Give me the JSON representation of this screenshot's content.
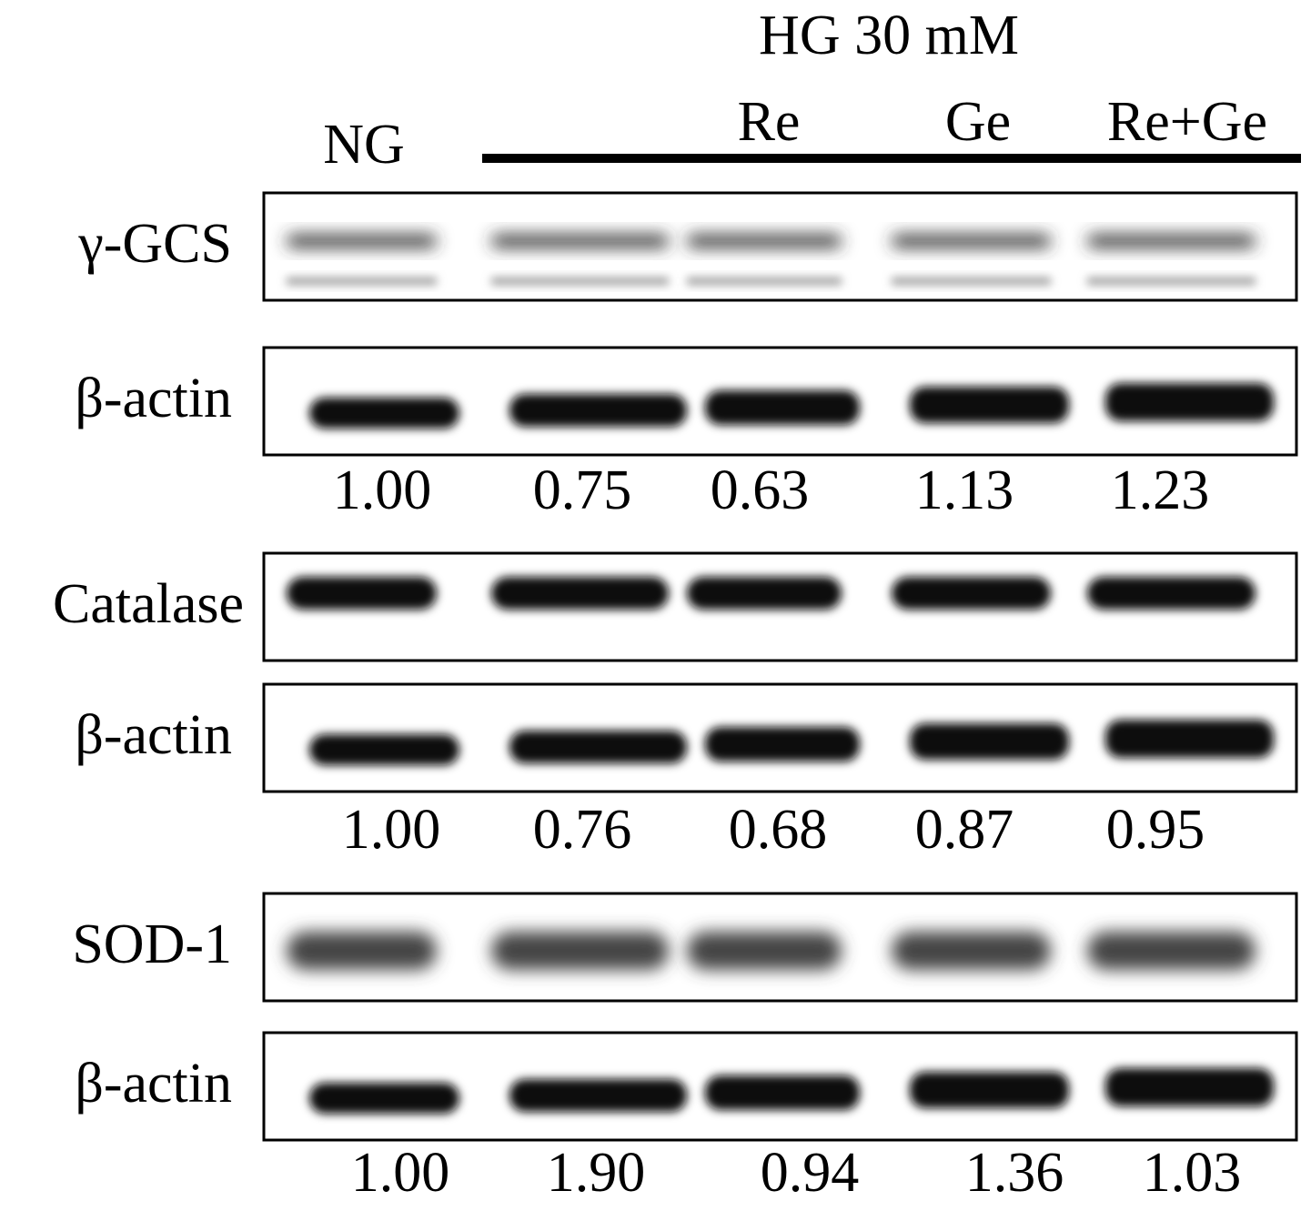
{
  "header": {
    "title": "HG 30 mM",
    "lanes": [
      "NG",
      "Re",
      "Ge",
      "Re+Ge"
    ]
  },
  "blots": [
    {
      "label": "γ-GCS",
      "loading": "β-actin",
      "ratios": [
        "1.00",
        "0.75",
        "0.63",
        "1.13",
        "1.23"
      ]
    },
    {
      "label": "Catalase",
      "loading": "β-actin",
      "ratios": [
        "1.00",
        "0.76",
        "0.68",
        "0.87",
        "0.95"
      ]
    },
    {
      "label": "SOD-1",
      "loading": "β-actin",
      "ratios": [
        "1.00",
        "1.90",
        "0.94",
        "1.36",
        "1.03"
      ]
    }
  ]
}
